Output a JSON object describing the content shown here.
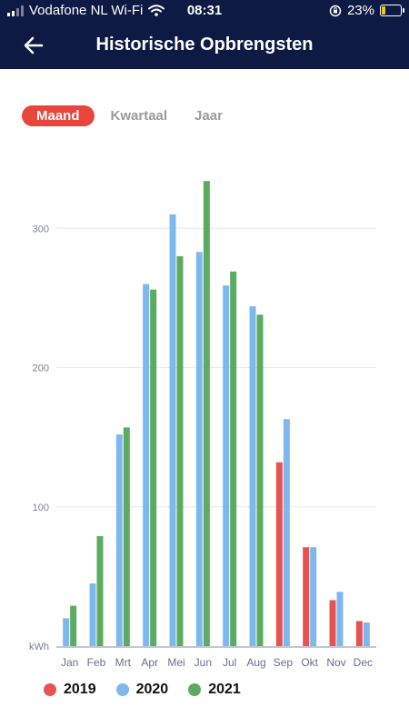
{
  "status": {
    "carrier": "Vodafone NL Wi-Fi",
    "time": "08:31",
    "battery": "23%",
    "battery_level": 0.23
  },
  "header": {
    "title": "Historische Opbrengsten",
    "back_icon": "back-arrow-icon"
  },
  "tabs": [
    {
      "label": "Maand",
      "active": true
    },
    {
      "label": "Kwartaal",
      "active": false
    },
    {
      "label": "Jaar",
      "active": false
    }
  ],
  "colors": {
    "header_bg": "#0c1a44",
    "active_tab": "#e8463c",
    "2019": "#e55451",
    "2020": "#7eb8ee",
    "2021": "#5cab5f"
  },
  "chart_data": {
    "type": "bar",
    "ylabel": "kWh",
    "ylim": [
      0,
      340
    ],
    "yticks": [
      100,
      200,
      300
    ],
    "grid": true,
    "legend_position": "bottom",
    "categories": [
      "Jan",
      "Feb",
      "Mrt",
      "Apr",
      "Mei",
      "Jun",
      "Jul",
      "Aug",
      "Sep",
      "Okt",
      "Nov",
      "Dec"
    ],
    "series": [
      {
        "name": "2019",
        "color": "#e55451",
        "values": [
          null,
          null,
          null,
          null,
          null,
          null,
          null,
          null,
          132,
          71,
          33,
          18
        ]
      },
      {
        "name": "2020",
        "color": "#7eb8ee",
        "values": [
          20,
          45,
          152,
          260,
          310,
          283,
          259,
          244,
          163,
          71,
          39,
          17
        ]
      },
      {
        "name": "2021",
        "color": "#5cab5f",
        "values": [
          29,
          79,
          157,
          256,
          280,
          334,
          269,
          238,
          null,
          null,
          null,
          null
        ]
      }
    ]
  }
}
